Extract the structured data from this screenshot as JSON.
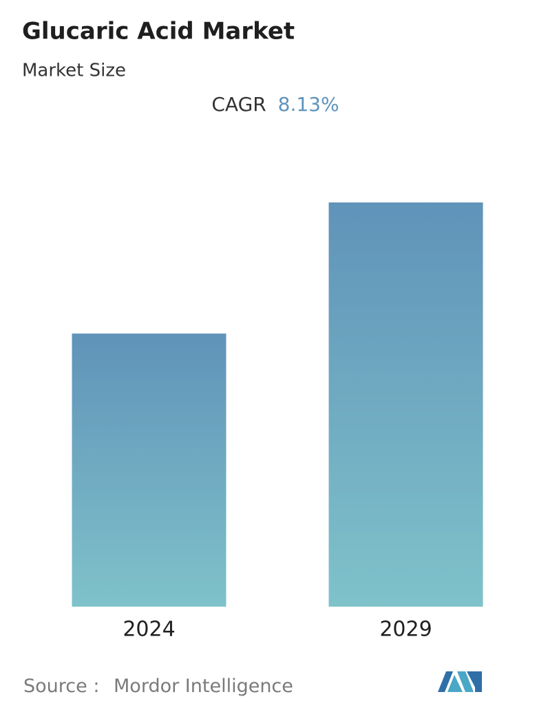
{
  "chart_data": {
    "type": "bar",
    "title": "Glucaric Acid Market",
    "subtitle": "Market Size",
    "cagr_label": "CAGR",
    "cagr_value": "8.13%",
    "categories": [
      "2024",
      "2029"
    ],
    "values": [
      1.0,
      1.48
    ],
    "ylim": [
      0,
      1.48
    ],
    "source_label": "Source :",
    "source": "Mordor Intelligence"
  }
}
